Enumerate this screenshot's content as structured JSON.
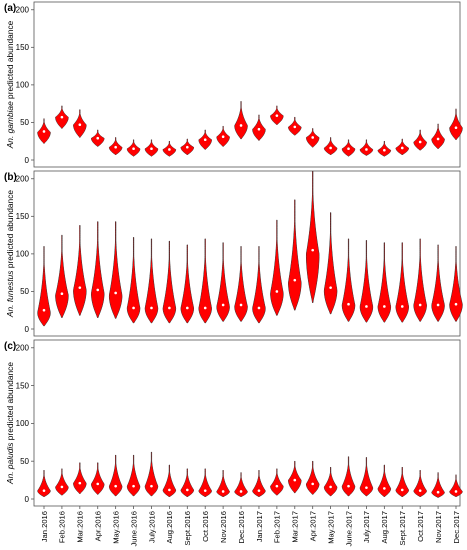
{
  "figure": {
    "categories": [
      "Jan.2016",
      "Feb.2016",
      "Mar.2016",
      "Apr.2016",
      "May.2016",
      "June.2016",
      "July.2016",
      "Aug.2016",
      "Sept.2016",
      "Oct.2016",
      "Nov.2016",
      "Dec.2016",
      "Jan.2017",
      "Feb.2017",
      "Mar.2017",
      "Apr.2017",
      "May.2017",
      "June.2017",
      "July.2017",
      "Aug.2017",
      "Sept.2017",
      "Oct.2017",
      "Nov.2017",
      "Dec.2017"
    ],
    "violin_color": "#ff0000",
    "median_color": "#ffffff",
    "yticks": [
      0,
      50,
      100,
      150,
      200
    ]
  },
  "chart_data": [
    {
      "type": "violin",
      "panel": "(a)",
      "ylabel_species": "An. gambiae",
      "ylabel_rest": " predicted abundance",
      "ylim": [
        0,
        205
      ],
      "median": [
        38,
        57,
        47,
        29,
        17,
        15,
        15,
        14,
        17,
        27,
        31,
        46,
        41,
        59,
        44,
        30,
        16,
        15,
        14,
        13,
        16,
        24,
        28,
        43
      ],
      "min": [
        22,
        42,
        30,
        18,
        7,
        5,
        5,
        5,
        7,
        14,
        18,
        28,
        26,
        47,
        33,
        17,
        7,
        5,
        6,
        5,
        7,
        13,
        15,
        27
      ],
      "max": [
        55,
        72,
        67,
        40,
        30,
        27,
        27,
        25,
        28,
        40,
        45,
        78,
        60,
        72,
        57,
        42,
        30,
        27,
        27,
        25,
        28,
        40,
        48,
        68
      ],
      "peak": [
        37,
        57,
        47,
        29,
        17,
        15,
        15,
        14,
        17,
        27,
        31,
        46,
        41,
        59,
        44,
        30,
        16,
        15,
        14,
        13,
        16,
        24,
        28,
        43
      ],
      "halfwidth": [
        6.5,
        6.5,
        6.5,
        6.5,
        6.5,
        6.5,
        6.5,
        6.5,
        6.5,
        6.5,
        6.5,
        6.5,
        6.5,
        6.5,
        6.5,
        6.5,
        6.5,
        6.5,
        6.5,
        6.5,
        6.5,
        6.5,
        6.5,
        6.5
      ]
    },
    {
      "type": "violin",
      "panel": "(b)",
      "ylabel_species": "An. funestus",
      "ylabel_rest": " predicted abundance",
      "ylim": [
        0,
        205
      ],
      "median": [
        25,
        47,
        55,
        52,
        48,
        28,
        28,
        28,
        28,
        28,
        32,
        32,
        28,
        50,
        65,
        105,
        55,
        33,
        30,
        30,
        30,
        32,
        32,
        33
      ],
      "min": [
        4,
        15,
        18,
        15,
        14,
        8,
        8,
        8,
        8,
        8,
        10,
        10,
        8,
        18,
        25,
        35,
        20,
        10,
        9,
        9,
        9,
        10,
        10,
        10
      ],
      "max": [
        110,
        125,
        138,
        143,
        143,
        122,
        120,
        117,
        112,
        120,
        115,
        110,
        110,
        145,
        172,
        210,
        155,
        120,
        118,
        115,
        115,
        120,
        112,
        110
      ],
      "peak": [
        22,
        45,
        52,
        48,
        45,
        28,
        28,
        28,
        28,
        28,
        30,
        30,
        28,
        48,
        62,
        100,
        52,
        32,
        30,
        30,
        30,
        32,
        32,
        33
      ],
      "halfwidth": [
        6.5,
        6.5,
        6.5,
        6.5,
        6.5,
        6.5,
        6.5,
        6.5,
        6.5,
        6.5,
        6.5,
        6.5,
        6.5,
        6.5,
        6.5,
        6.5,
        6.5,
        6.5,
        6.5,
        6.5,
        6.5,
        6.5,
        6.5,
        6.5
      ]
    },
    {
      "type": "violin",
      "panel": "(c)",
      "ylabel_species": "An. paludis",
      "ylabel_rest": " predicted abundance",
      "ylim": [
        0,
        205
      ],
      "median": [
        11,
        16,
        21,
        20,
        17,
        17,
        17,
        12,
        12,
        11,
        10,
        10,
        11,
        17,
        25,
        20,
        16,
        17,
        15,
        14,
        12,
        11,
        9,
        10
      ],
      "min": [
        3,
        5,
        7,
        6,
        4,
        4,
        4,
        3,
        3,
        3,
        3,
        3,
        3,
        5,
        8,
        6,
        4,
        4,
        4,
        3,
        3,
        3,
        2,
        3
      ],
      "max": [
        38,
        40,
        48,
        48,
        58,
        58,
        62,
        45,
        40,
        40,
        38,
        35,
        38,
        40,
        50,
        50,
        42,
        56,
        55,
        45,
        42,
        38,
        35,
        32
      ],
      "peak": [
        11,
        16,
        21,
        20,
        17,
        17,
        17,
        12,
        12,
        11,
        10,
        10,
        11,
        17,
        25,
        20,
        16,
        17,
        15,
        14,
        12,
        11,
        9,
        10
      ],
      "halfwidth": [
        6.5,
        6.5,
        6.5,
        6.5,
        6.5,
        6.5,
        6.5,
        6.5,
        6.5,
        6.5,
        6.5,
        6.5,
        6.5,
        6.5,
        6.5,
        6.5,
        6.5,
        6.5,
        6.5,
        6.5,
        6.5,
        6.5,
        6.5,
        6.5
      ]
    }
  ]
}
